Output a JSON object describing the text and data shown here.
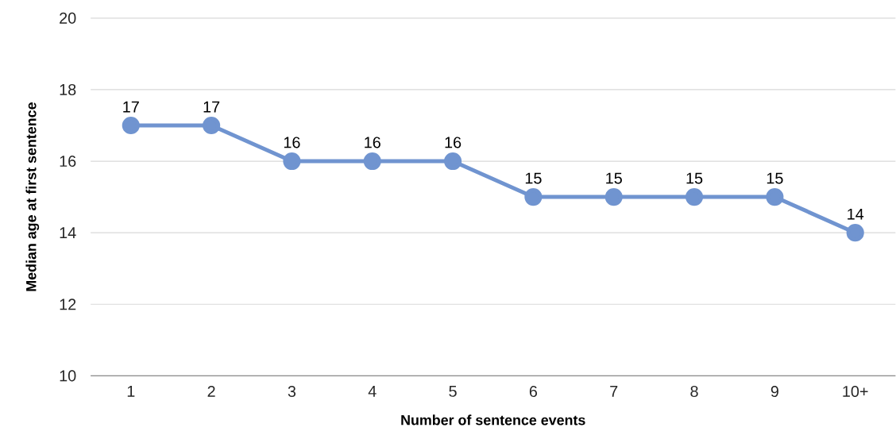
{
  "chart_data": {
    "type": "line",
    "xlabel": "Number of sentence events",
    "ylabel": "Median age at first sentence",
    "categories": [
      "1",
      "2",
      "3",
      "4",
      "5",
      "6",
      "7",
      "8",
      "9",
      "10+"
    ],
    "values": [
      17,
      17,
      16,
      16,
      16,
      15,
      15,
      15,
      15,
      14
    ],
    "color": "#7094d0",
    "ylim": [
      10,
      20
    ],
    "yticks": [
      10,
      12,
      14,
      16,
      18,
      20
    ],
    "grid": "y",
    "marker": "circle",
    "data_labels": true
  }
}
